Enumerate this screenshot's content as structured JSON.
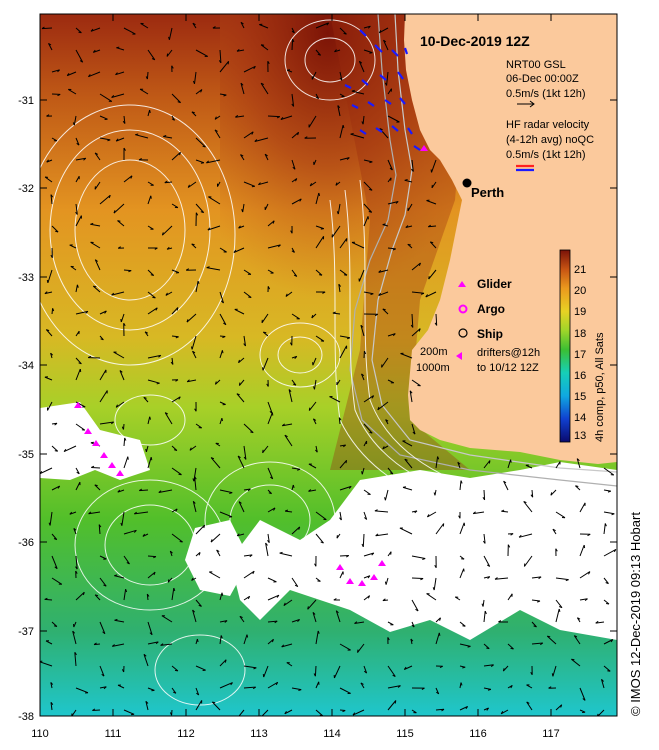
{
  "title": "10-Dec-2019 12Z",
  "credit": "© IMOS 12-Dec-2019 09:13 Hobart",
  "place": "Perth",
  "nrt": {
    "line1": "NRT00 GSL",
    "line2": "06-Dec 00:00Z",
    "line3": "0.5m/s (1kt 12h)"
  },
  "hf": {
    "line1": "HF radar velocity",
    "line2": "(4-12h avg) noQC",
    "line3": "0.5m/s (1kt 12h)"
  },
  "legend": {
    "glider": "Glider",
    "argo": "Argo",
    "ship": "Ship",
    "isobath_200": "200m",
    "isobath_1000": "1000m",
    "drifters_line1": "drifters@12h",
    "drifters_line2": "to 10/12 12Z"
  },
  "colorbar": {
    "label": "4h comp, p50, All Sats",
    "ticks": [
      "21",
      "20",
      "19",
      "18",
      "17",
      "16",
      "15",
      "14",
      "13"
    ],
    "min": 12.5,
    "max": 21.5
  },
  "axes": {
    "lon_ticks": [
      "110",
      "111",
      "112",
      "113",
      "114",
      "115",
      "116",
      "117"
    ],
    "lat_ticks": [
      "-31",
      "-32",
      "-33",
      "-34",
      "-35",
      "-36",
      "-37",
      "-38"
    ],
    "lon_range": [
      110,
      117.9
    ],
    "lat_range": [
      -38,
      -30.2
    ]
  },
  "colors": {
    "land": "#fbc99c",
    "sst_warm": "#8b1a0a",
    "sst_mid": "#e6a018",
    "sst_cool": "#44b828",
    "sst_cold": "#13c6d6",
    "glider": "#ff00ff",
    "hf_radar": "#1a1aff",
    "hf_red": "#ff2020"
  }
}
